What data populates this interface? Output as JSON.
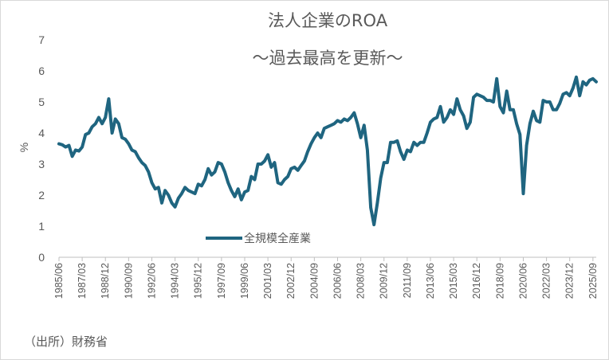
{
  "chart_data": {
    "type": "line",
    "title": [
      "法人企業のROA",
      "～過去最高を更新～"
    ],
    "ylabel": "%",
    "ylim": [
      0,
      7
    ],
    "yticks": [
      "0",
      "1",
      "2",
      "3",
      "4",
      "5",
      "6",
      "7"
    ],
    "grid": false,
    "legend_position": "middle-left",
    "source": "（出所）財務省",
    "xticks": [
      "1985/06",
      "1987/03",
      "1988/12",
      "1990/09",
      "1992/06",
      "1994/03",
      "1995/12",
      "1997/09",
      "1999/06",
      "2001/03",
      "2002/12",
      "2004/09",
      "2006/06",
      "2008/03",
      "2009/12",
      "2011/09",
      "2013/06",
      "2015/03",
      "2016/12",
      "2018/09",
      "2020/06",
      "2022/03",
      "2023/12",
      "2025/09"
    ],
    "series": [
      {
        "name": "全規模全産業",
        "color": "#1F6580",
        "points": [
          [
            1985.5,
            3.65
          ],
          [
            1985.75,
            3.62
          ],
          [
            1986.0,
            3.55
          ],
          [
            1986.25,
            3.6
          ],
          [
            1986.5,
            3.25
          ],
          [
            1986.75,
            3.45
          ],
          [
            1987.0,
            3.42
          ],
          [
            1987.25,
            3.55
          ],
          [
            1987.5,
            3.95
          ],
          [
            1987.75,
            4.0
          ],
          [
            1988.0,
            4.2
          ],
          [
            1988.25,
            4.3
          ],
          [
            1988.5,
            4.5
          ],
          [
            1988.75,
            4.3
          ],
          [
            1989.0,
            4.5
          ],
          [
            1989.25,
            5.1
          ],
          [
            1989.5,
            4.0
          ],
          [
            1989.75,
            4.45
          ],
          [
            1990.0,
            4.3
          ],
          [
            1990.25,
            3.85
          ],
          [
            1990.5,
            3.8
          ],
          [
            1990.75,
            3.65
          ],
          [
            1991.0,
            3.45
          ],
          [
            1991.25,
            3.4
          ],
          [
            1991.5,
            3.2
          ],
          [
            1991.75,
            3.05
          ],
          [
            1992.0,
            2.95
          ],
          [
            1992.25,
            2.75
          ],
          [
            1992.5,
            2.4
          ],
          [
            1992.75,
            2.2
          ],
          [
            1993.0,
            2.25
          ],
          [
            1993.25,
            1.75
          ],
          [
            1993.5,
            2.15
          ],
          [
            1993.75,
            2.0
          ],
          [
            1994.0,
            1.75
          ],
          [
            1994.25,
            1.62
          ],
          [
            1994.5,
            1.9
          ],
          [
            1994.75,
            2.05
          ],
          [
            1995.0,
            2.25
          ],
          [
            1995.25,
            2.15
          ],
          [
            1995.5,
            2.1
          ],
          [
            1995.75,
            2.05
          ],
          [
            1996.0,
            2.35
          ],
          [
            1996.25,
            2.3
          ],
          [
            1996.5,
            2.5
          ],
          [
            1996.75,
            2.85
          ],
          [
            1997.0,
            2.65
          ],
          [
            1997.25,
            2.75
          ],
          [
            1997.5,
            3.05
          ],
          [
            1997.75,
            3.0
          ],
          [
            1998.0,
            2.75
          ],
          [
            1998.25,
            2.4
          ],
          [
            1998.5,
            2.15
          ],
          [
            1998.75,
            1.95
          ],
          [
            1999.0,
            2.2
          ],
          [
            1999.25,
            1.85
          ],
          [
            1999.5,
            2.1
          ],
          [
            1999.75,
            2.15
          ],
          [
            2000.0,
            2.6
          ],
          [
            2000.25,
            2.5
          ],
          [
            2000.5,
            3.0
          ],
          [
            2000.75,
            3.0
          ],
          [
            2001.0,
            3.1
          ],
          [
            2001.25,
            3.3
          ],
          [
            2001.5,
            2.9
          ],
          [
            2001.75,
            3.05
          ],
          [
            2002.0,
            2.4
          ],
          [
            2002.25,
            2.35
          ],
          [
            2002.5,
            2.5
          ],
          [
            2002.75,
            2.6
          ],
          [
            2003.0,
            2.85
          ],
          [
            2003.25,
            2.9
          ],
          [
            2003.5,
            2.8
          ],
          [
            2003.75,
            2.95
          ],
          [
            2004.0,
            3.1
          ],
          [
            2004.25,
            3.4
          ],
          [
            2004.5,
            3.65
          ],
          [
            2004.75,
            3.85
          ],
          [
            2005.0,
            4.0
          ],
          [
            2005.25,
            3.85
          ],
          [
            2005.5,
            4.15
          ],
          [
            2005.75,
            4.2
          ],
          [
            2006.0,
            4.25
          ],
          [
            2006.25,
            4.3
          ],
          [
            2006.5,
            4.4
          ],
          [
            2006.75,
            4.35
          ],
          [
            2007.0,
            4.45
          ],
          [
            2007.25,
            4.4
          ],
          [
            2007.5,
            4.5
          ],
          [
            2007.75,
            4.65
          ],
          [
            2008.0,
            4.3
          ],
          [
            2008.25,
            3.85
          ],
          [
            2008.5,
            4.25
          ],
          [
            2008.75,
            3.45
          ],
          [
            2009.0,
            1.6
          ],
          [
            2009.25,
            1.05
          ],
          [
            2009.5,
            1.75
          ],
          [
            2009.75,
            2.55
          ],
          [
            2010.0,
            3.05
          ],
          [
            2010.25,
            3.05
          ],
          [
            2010.5,
            3.7
          ],
          [
            2010.75,
            3.7
          ],
          [
            2011.0,
            3.75
          ],
          [
            2011.25,
            3.4
          ],
          [
            2011.5,
            3.15
          ],
          [
            2011.75,
            3.45
          ],
          [
            2012.0,
            3.4
          ],
          [
            2012.25,
            3.7
          ],
          [
            2012.5,
            3.6
          ],
          [
            2012.75,
            3.7
          ],
          [
            2013.0,
            3.7
          ],
          [
            2013.25,
            4.0
          ],
          [
            2013.5,
            4.35
          ],
          [
            2013.75,
            4.45
          ],
          [
            2014.0,
            4.5
          ],
          [
            2014.25,
            4.85
          ],
          [
            2014.5,
            4.35
          ],
          [
            2014.75,
            4.5
          ],
          [
            2015.0,
            4.75
          ],
          [
            2015.25,
            4.6
          ],
          [
            2015.5,
            5.1
          ],
          [
            2015.75,
            4.75
          ],
          [
            2016.0,
            4.55
          ],
          [
            2016.25,
            4.15
          ],
          [
            2016.5,
            4.35
          ],
          [
            2016.75,
            5.15
          ],
          [
            2017.0,
            5.25
          ],
          [
            2017.25,
            5.2
          ],
          [
            2017.5,
            5.15
          ],
          [
            2017.75,
            5.05
          ],
          [
            2018.0,
            5.05
          ],
          [
            2018.25,
            5.0
          ],
          [
            2018.5,
            5.75
          ],
          [
            2018.75,
            4.85
          ],
          [
            2019.0,
            4.65
          ],
          [
            2019.25,
            5.35
          ],
          [
            2019.5,
            4.75
          ],
          [
            2019.75,
            4.75
          ],
          [
            2020.0,
            4.3
          ],
          [
            2020.25,
            3.95
          ],
          [
            2020.5,
            2.05
          ],
          [
            2020.75,
            3.6
          ],
          [
            2021.0,
            4.3
          ],
          [
            2021.25,
            4.7
          ],
          [
            2021.5,
            4.4
          ],
          [
            2021.75,
            4.35
          ],
          [
            2022.0,
            5.05
          ],
          [
            2022.25,
            5.0
          ],
          [
            2022.5,
            5.0
          ],
          [
            2022.75,
            4.75
          ],
          [
            2023.0,
            4.75
          ],
          [
            2023.25,
            4.95
          ],
          [
            2023.5,
            5.25
          ],
          [
            2023.75,
            5.3
          ],
          [
            2024.0,
            5.2
          ],
          [
            2024.25,
            5.45
          ],
          [
            2024.5,
            5.8
          ],
          [
            2024.75,
            5.2
          ],
          [
            2025.0,
            5.65
          ],
          [
            2025.25,
            5.55
          ],
          [
            2025.5,
            5.7
          ],
          [
            2025.75,
            5.75
          ],
          [
            2026.0,
            5.65
          ]
        ]
      }
    ]
  }
}
